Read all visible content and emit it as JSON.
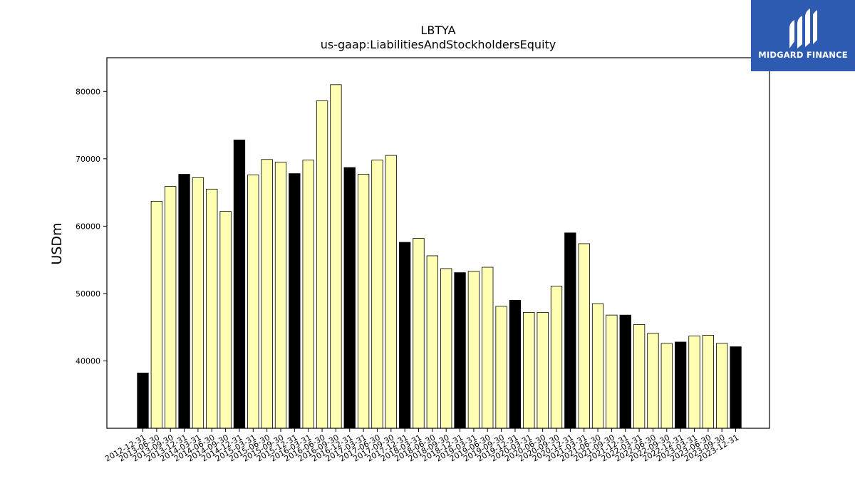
{
  "chart_data": {
    "type": "bar",
    "title": "LBTYA",
    "subtitle": "us-gaap:LiabilitiesAndStockholdersEquity",
    "xlabel": "",
    "ylabel": "USDm",
    "ylim": [
      30000,
      85000
    ],
    "yticks": [
      40000,
      50000,
      60000,
      70000,
      80000
    ],
    "grid": false,
    "categories": [
      "2012-12-31",
      "2013-06-30",
      "2013-09-30",
      "2013-12-31",
      "2014-03-31",
      "2014-06-30",
      "2014-09-30",
      "2014-12-31",
      "2015-03-31",
      "2015-06-30",
      "2015-09-30",
      "2015-12-31",
      "2016-03-31",
      "2016-06-30",
      "2016-09-30",
      "2016-12-31",
      "2017-03-31",
      "2017-06-30",
      "2017-09-30",
      "2017-12-31",
      "2018-03-31",
      "2018-06-30",
      "2018-09-30",
      "2018-12-31",
      "2019-03-31",
      "2019-06-30",
      "2019-09-30",
      "2019-12-31",
      "2020-03-31",
      "2020-06-30",
      "2020-09-30",
      "2020-12-31",
      "2021-03-31",
      "2021-06-30",
      "2021-09-30",
      "2021-12-31",
      "2022-03-31",
      "2022-06-30",
      "2022-09-30",
      "2022-12-31",
      "2023-03-31",
      "2023-06-30",
      "2023-09-30",
      "2023-12-31"
    ],
    "values": [
      38200,
      63700,
      65900,
      67700,
      67200,
      65500,
      62200,
      72800,
      67600,
      69900,
      69500,
      67800,
      69800,
      78600,
      81000,
      68700,
      67700,
      69800,
      70500,
      57600,
      58200,
      55600,
      53700,
      53100,
      53300,
      53900,
      48100,
      49000,
      47200,
      47200,
      51100,
      59000,
      57400,
      48500,
      46800,
      46800,
      45400,
      44100,
      42600,
      42800,
      43700,
      43800,
      42600,
      42100
    ],
    "year_end": [
      true,
      false,
      false,
      true,
      false,
      false,
      false,
      true,
      false,
      false,
      false,
      true,
      false,
      false,
      false,
      true,
      false,
      false,
      false,
      true,
      false,
      false,
      false,
      true,
      false,
      false,
      false,
      true,
      false,
      false,
      false,
      true,
      false,
      false,
      false,
      true,
      false,
      false,
      false,
      true,
      false,
      false,
      false,
      true
    ],
    "colors": {
      "year_end": "#000000",
      "quarter": "#ffffb3",
      "edge": "#000000"
    }
  },
  "logo": {
    "text": "MIDGARD FINANCE",
    "background": "#2d5bb1"
  }
}
